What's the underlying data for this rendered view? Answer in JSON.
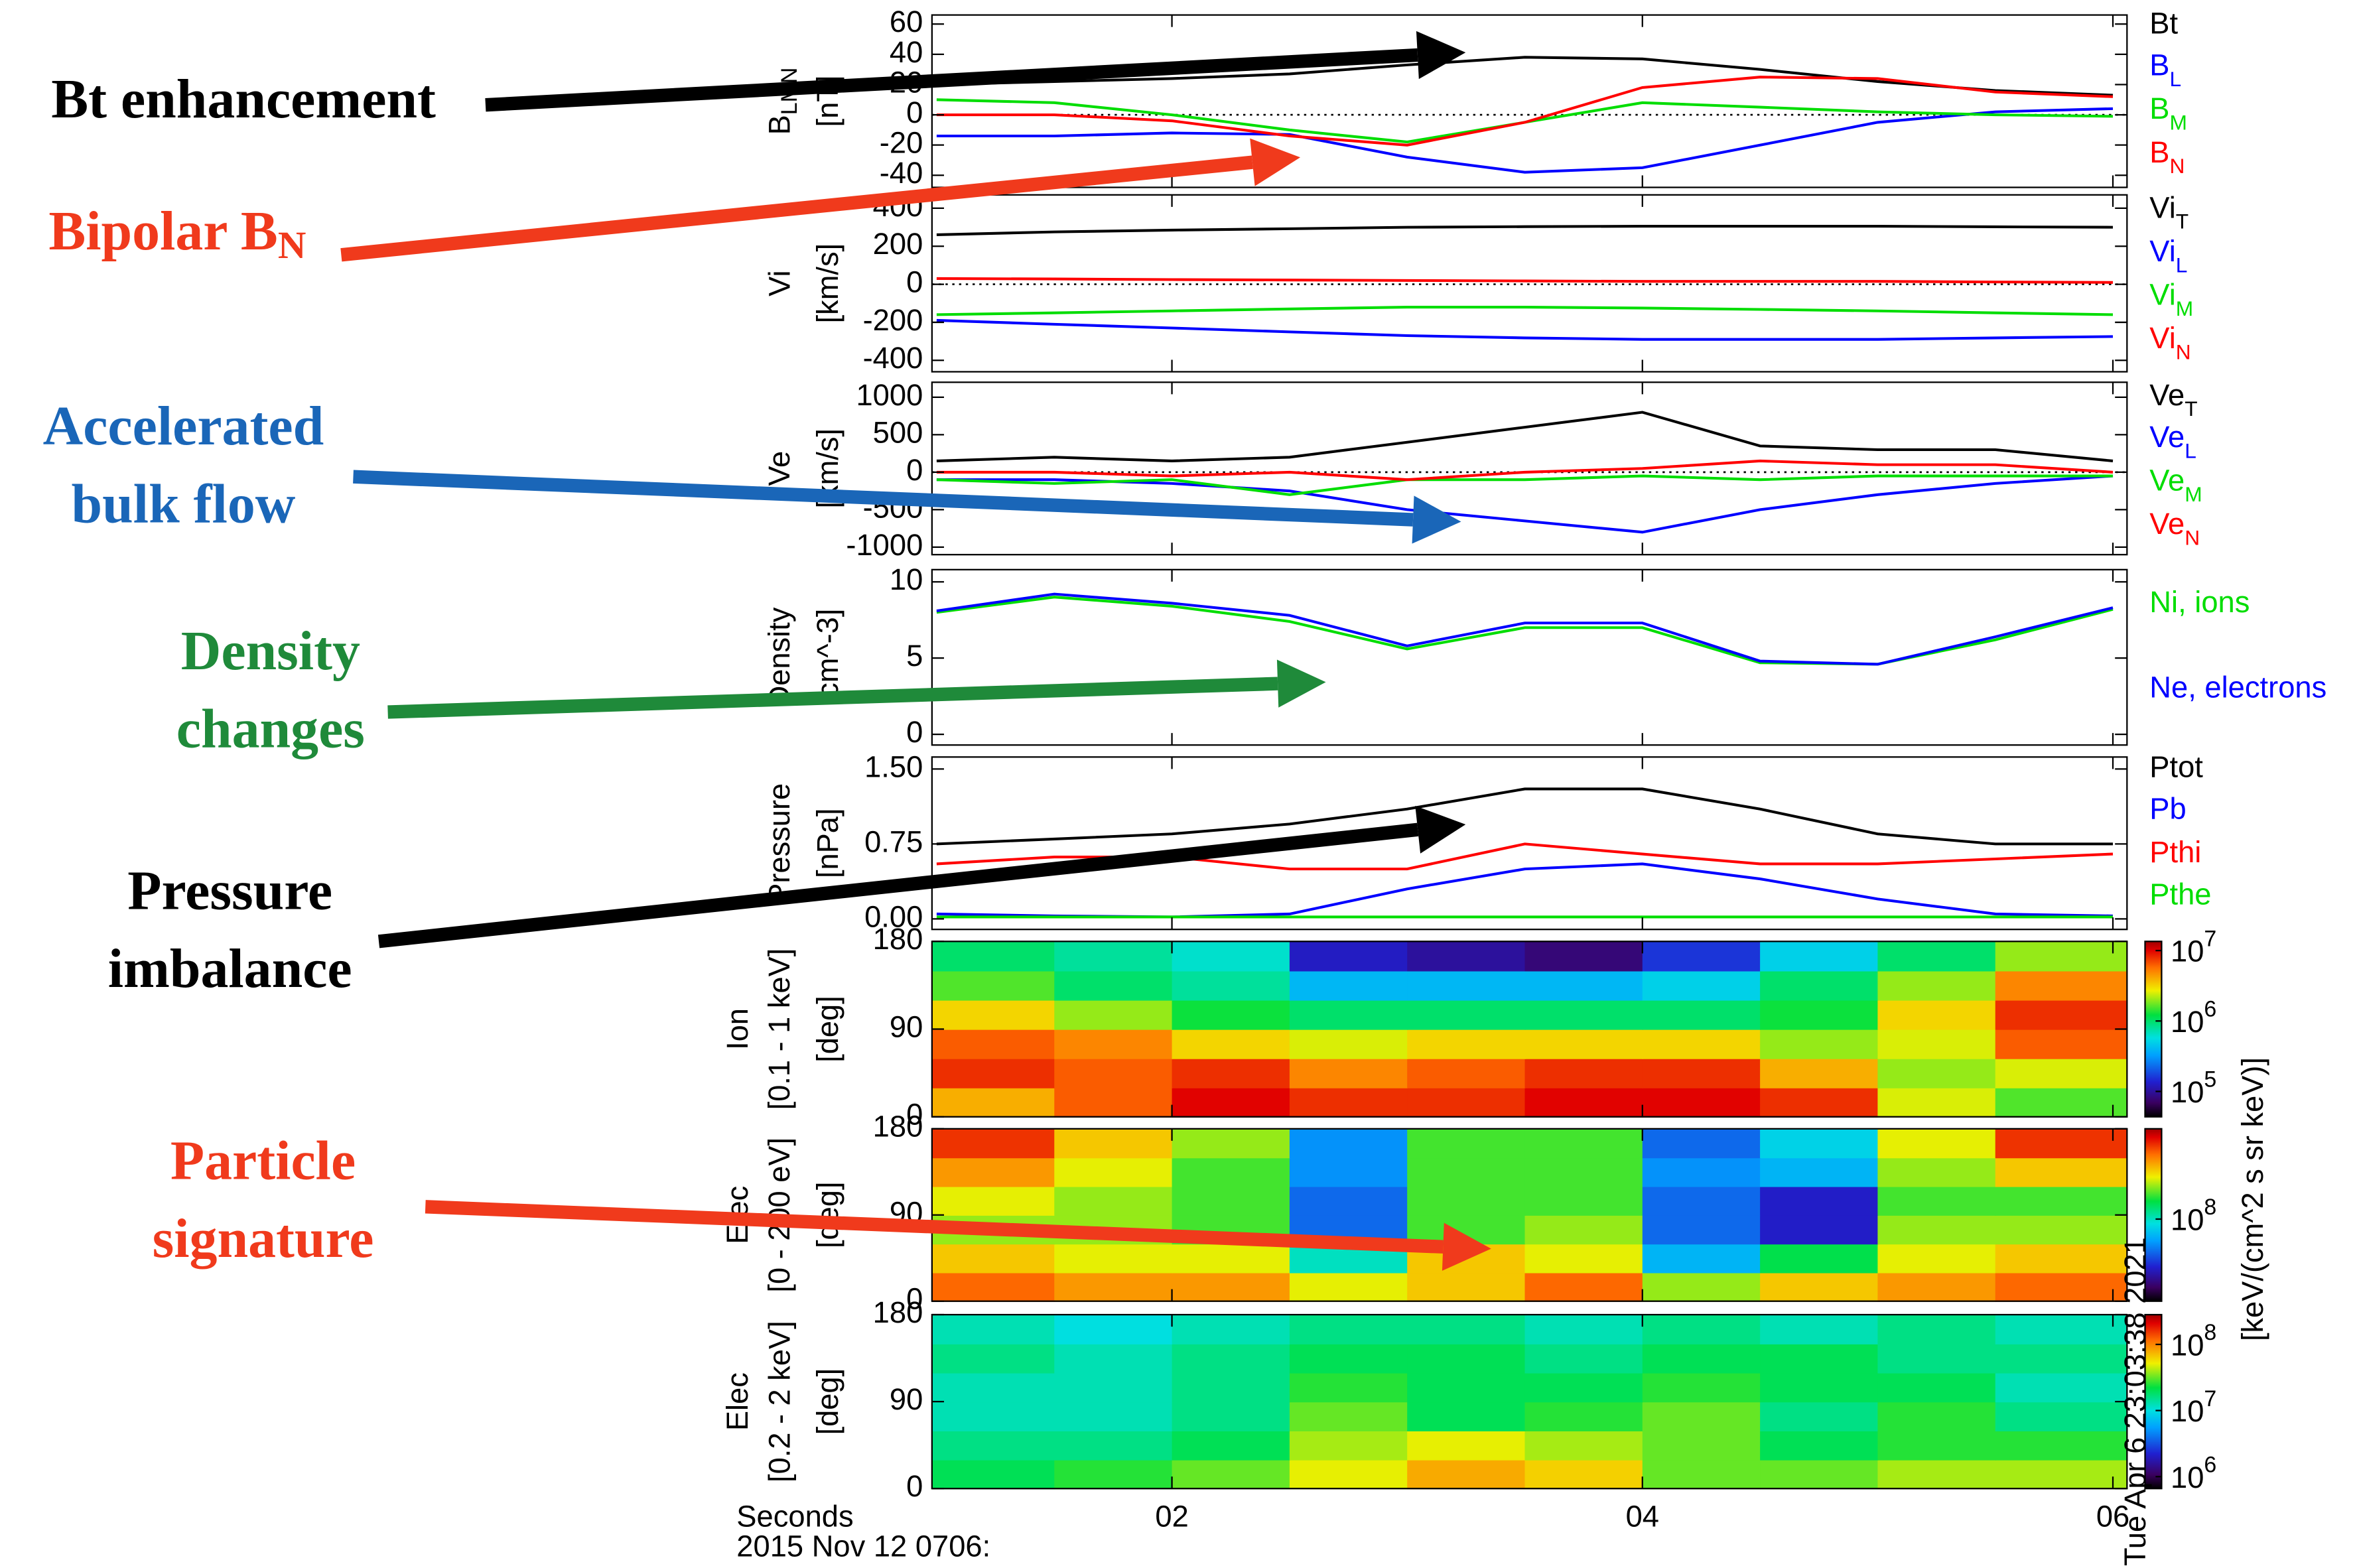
{
  "x_axis": {
    "xlim": [
      0.98,
      6.06
    ],
    "xticks": [
      {
        "value": 2,
        "label": "02"
      },
      {
        "value": 4,
        "label": "04"
      },
      {
        "value": 6,
        "label": "06"
      }
    ],
    "xlabel": "Seconds",
    "date": "2015 Nov 12 0706:"
  },
  "stamp": "Tue Apr  6 23:03:38 2021",
  "colorbar_label": "[keV/(cm^2 s sr keV)]",
  "annotations": [
    {
      "lines": [
        "Bt enhancement"
      ],
      "color": "#000000"
    },
    {
      "lines": [
        "Bipolar B"
      ],
      "sub": "N",
      "color": "#f03a1c"
    },
    {
      "lines": [
        "Accelerated",
        "bulk flow"
      ],
      "color": "#1a66b8"
    },
    {
      "lines": [
        "Density",
        "changes"
      ],
      "color": "#1f8a3a"
    },
    {
      "lines": [
        "Pressure",
        "imbalance"
      ],
      "color": "#000000"
    },
    {
      "lines": [
        "Particle",
        "signature"
      ],
      "color": "#f03a1c"
    }
  ],
  "chart_data": [
    {
      "type": "line",
      "ylabel": [
        "B",
        "LMN",
        "[nT]"
      ],
      "ylim": [
        -48,
        66
      ],
      "yticks": [
        60,
        40,
        20,
        0,
        -20,
        -40
      ],
      "reference_line": 0,
      "x": [
        1,
        1.5,
        2,
        2.5,
        3,
        3.5,
        4,
        4.5,
        5,
        5.5,
        6
      ],
      "series": [
        {
          "name": "Bt",
          "color": "#000000",
          "values": [
            20,
            22,
            24,
            27,
            33,
            38,
            37,
            30,
            22,
            16,
            13
          ]
        },
        {
          "name": "B",
          "name_sub": "L",
          "color": "#0000ff",
          "values": [
            -14,
            -14,
            -12,
            -13,
            -28,
            -38,
            -35,
            -20,
            -5,
            2,
            4
          ]
        },
        {
          "name": "B",
          "name_sub": "M",
          "color": "#00dd00",
          "values": [
            10,
            8,
            0,
            -10,
            -18,
            -5,
            8,
            5,
            2,
            0,
            -1
          ]
        },
        {
          "name": "B",
          "name_sub": "N",
          "color": "#ff0000",
          "values": [
            0,
            0,
            -4,
            -14,
            -20,
            -5,
            18,
            25,
            24,
            15,
            12
          ]
        }
      ]
    },
    {
      "type": "line",
      "ylabel": [
        "Vi",
        "[km/s]"
      ],
      "ylim": [
        -460,
        470
      ],
      "yticks": [
        400,
        200,
        0,
        -200,
        -400
      ],
      "reference_line": 0,
      "x": [
        1,
        1.5,
        2,
        2.5,
        3,
        3.5,
        4,
        4.5,
        5,
        5.5,
        6
      ],
      "series": [
        {
          "name": "Vi",
          "name_sub": "T",
          "color": "#000000",
          "values": [
            260,
            275,
            285,
            292,
            300,
            303,
            305,
            305,
            305,
            302,
            300
          ]
        },
        {
          "name": "Vi",
          "name_sub": "L",
          "color": "#0000ff",
          "values": [
            -190,
            -210,
            -230,
            -250,
            -270,
            -282,
            -290,
            -290,
            -290,
            -282,
            -275
          ]
        },
        {
          "name": "Vi",
          "name_sub": "M",
          "color": "#00dd00",
          "values": [
            -160,
            -150,
            -140,
            -130,
            -120,
            -120,
            -125,
            -132,
            -140,
            -150,
            -160
          ]
        },
        {
          "name": "Vi",
          "name_sub": "N",
          "color": "#ff0000",
          "values": [
            30,
            28,
            25,
            22,
            20,
            18,
            15,
            15,
            15,
            12,
            10
          ]
        }
      ]
    },
    {
      "type": "line",
      "ylabel": [
        "Ve",
        "[km/s]"
      ],
      "ylim": [
        -1100,
        1200
      ],
      "yticks": [
        1000,
        500,
        0,
        -500,
        -1000
      ],
      "reference_line": 0,
      "x": [
        1,
        1.5,
        2,
        2.5,
        3,
        3.5,
        4,
        4.5,
        5,
        5.5,
        6
      ],
      "series": [
        {
          "name": "Ve",
          "name_sub": "T",
          "color": "#000000",
          "values": [
            150,
            200,
            150,
            200,
            400,
            600,
            800,
            350,
            300,
            300,
            150
          ]
        },
        {
          "name": "Ve",
          "name_sub": "L",
          "color": "#0000ff",
          "values": [
            -100,
            -100,
            -150,
            -250,
            -500,
            -650,
            -800,
            -500,
            -300,
            -150,
            -50
          ]
        },
        {
          "name": "Ve",
          "name_sub": "M",
          "color": "#00dd00",
          "values": [
            -100,
            -150,
            -100,
            -300,
            -100,
            -100,
            -50,
            -100,
            -50,
            -50,
            -50
          ]
        },
        {
          "name": "Ve",
          "name_sub": "N",
          "color": "#ff0000",
          "values": [
            0,
            0,
            -50,
            0,
            -100,
            0,
            50,
            150,
            100,
            100,
            0
          ]
        }
      ]
    },
    {
      "type": "line",
      "ylabel": [
        "Density",
        "[cm^-3]"
      ],
      "ylim": [
        -0.7,
        10.8
      ],
      "yticks": [
        10,
        5,
        0
      ],
      "x": [
        1,
        1.5,
        2,
        2.5,
        3,
        3.5,
        4,
        4.5,
        5,
        5.5,
        6
      ],
      "series": [
        {
          "name": "Ni, ions",
          "color": "#00dd00",
          "values": [
            8,
            9,
            8.4,
            7.4,
            5.6,
            7,
            7,
            4.7,
            4.6,
            6.2,
            8.2
          ]
        },
        {
          "name": "Ne, electrons",
          "color": "#0000ff",
          "values": [
            8.1,
            9.2,
            8.6,
            7.8,
            5.8,
            7.3,
            7.3,
            4.8,
            4.6,
            6.4,
            8.3
          ]
        }
      ]
    },
    {
      "type": "line",
      "ylabel": [
        "Pressure",
        "[nPa]"
      ],
      "ylim": [
        -0.105,
        1.62
      ],
      "yticks": [
        {
          "value": 1.5,
          "label": "1.50"
        },
        0.75,
        {
          "value": 0,
          "label": "0.00"
        }
      ],
      "x": [
        1,
        1.5,
        2,
        2.5,
        3,
        3.5,
        4,
        4.5,
        5,
        5.5,
        6
      ],
      "series": [
        {
          "name": "Ptot",
          "color": "#000000",
          "values": [
            0.75,
            0.8,
            0.85,
            0.95,
            1.1,
            1.3,
            1.3,
            1.1,
            0.85,
            0.75,
            0.75
          ]
        },
        {
          "name": "Pb",
          "color": "#0000ff",
          "values": [
            0.05,
            0.03,
            0.02,
            0.05,
            0.3,
            0.5,
            0.55,
            0.4,
            0.2,
            0.05,
            0.03
          ]
        },
        {
          "name": "Pthi",
          "color": "#ff0000",
          "values": [
            0.55,
            0.62,
            0.62,
            0.5,
            0.5,
            0.75,
            0.65,
            0.55,
            0.55,
            0.6,
            0.65
          ]
        },
        {
          "name": "Pthe",
          "color": "#00dd00",
          "values": [
            0.02,
            0.02,
            0.02,
            0.02,
            0.02,
            0.02,
            0.02,
            0.02,
            0.02,
            0.02,
            0.02
          ]
        }
      ]
    },
    {
      "type": "heatmap",
      "ylabel": [
        "Ion",
        "[0.1 - 1 keV]",
        "[deg]"
      ],
      "ylim": [
        0,
        180
      ],
      "yticks": [
        180,
        90,
        0
      ],
      "x_edges": [
        0.98,
        1.5,
        2,
        2.5,
        3,
        3.5,
        4,
        4.5,
        5,
        5.5,
        6.06
      ],
      "y_edges": [
        0,
        30,
        60,
        90,
        120,
        150,
        180
      ],
      "z": [
        [
          6.6,
          6.8,
          7.0,
          6.9,
          6.9,
          7.0,
          7.0,
          6.9,
          6.4,
          6.2
        ],
        [
          6.9,
          6.8,
          6.9,
          6.7,
          6.8,
          6.9,
          6.9,
          6.6,
          6.3,
          6.4
        ],
        [
          6.8,
          6.7,
          6.5,
          6.4,
          6.5,
          6.5,
          6.5,
          6.3,
          6.4,
          6.8
        ],
        [
          6.5,
          6.3,
          6.1,
          6.0,
          6.0,
          6.0,
          6.0,
          6.1,
          6.5,
          6.9
        ],
        [
          6.2,
          6.0,
          5.9,
          5.6,
          5.6,
          5.6,
          5.7,
          6.0,
          6.3,
          6.7
        ],
        [
          6.0,
          5.9,
          5.8,
          5.1,
          5.0,
          4.9,
          5.2,
          5.7,
          6.0,
          6.3
        ]
      ],
      "colorbar": {
        "range": [
          4.64,
          7.13
        ],
        "ticks": [
          {
            "value": 7,
            "label": "10",
            "sup": "7"
          },
          {
            "value": 6,
            "label": "10",
            "sup": "6"
          },
          {
            "value": 5,
            "label": "10",
            "sup": "5"
          }
        ]
      }
    },
    {
      "type": "heatmap",
      "ylabel": [
        "Elec",
        "[0 - 200 eV]",
        "[deg]"
      ],
      "ylim": [
        0,
        180
      ],
      "yticks": [
        180,
        90,
        0
      ],
      "x_edges": [
        0.98,
        1.5,
        2,
        2.5,
        3,
        3.5,
        4,
        4.5,
        5,
        5.5,
        6.06
      ],
      "y_edges": [
        0,
        30,
        60,
        90,
        120,
        150,
        180
      ],
      "z": [
        [
          8.8,
          8.7,
          8.7,
          8.5,
          8.6,
          8.8,
          8.4,
          8.6,
          8.7,
          8.8
        ],
        [
          8.6,
          8.5,
          8.5,
          8.0,
          8.6,
          8.5,
          7.8,
          8.2,
          8.5,
          8.6
        ],
        [
          8.4,
          8.4,
          8.3,
          7.6,
          8.3,
          8.4,
          7.6,
          7.4,
          8.4,
          8.4
        ],
        [
          8.5,
          8.4,
          8.3,
          7.6,
          8.3,
          8.3,
          7.6,
          7.4,
          8.3,
          8.3
        ],
        [
          8.7,
          8.5,
          8.3,
          7.7,
          8.3,
          8.3,
          7.7,
          7.8,
          8.4,
          8.6
        ],
        [
          8.9,
          8.6,
          8.4,
          7.7,
          8.3,
          8.3,
          7.6,
          7.9,
          8.5,
          8.9
        ]
      ],
      "colorbar": {
        "range": [
          7.0,
          9.1
        ],
        "ticks": [
          {
            "value": 8,
            "label": "10",
            "sup": "8"
          }
        ]
      }
    },
    {
      "type": "heatmap",
      "ylabel": [
        "Elec",
        "[0.2 - 2 keV]",
        "[deg]"
      ],
      "ylim": [
        0,
        180
      ],
      "yticks": [
        180,
        90,
        0
      ],
      "x_edges": [
        0.98,
        1.5,
        2,
        2.5,
        3,
        3.5,
        4,
        4.5,
        5,
        5.5,
        6.06
      ],
      "y_edges": [
        0,
        30,
        60,
        90,
        120,
        150,
        180
      ],
      "z": [
        [
          7.3,
          7.4,
          7.5,
          7.7,
          7.9,
          7.8,
          7.5,
          7.5,
          7.6,
          7.6
        ],
        [
          7.2,
          7.2,
          7.3,
          7.6,
          7.7,
          7.6,
          7.5,
          7.3,
          7.4,
          7.4
        ],
        [
          7.1,
          7.1,
          7.2,
          7.5,
          7.3,
          7.4,
          7.5,
          7.2,
          7.4,
          7.2
        ],
        [
          7.1,
          7.1,
          7.2,
          7.4,
          7.3,
          7.3,
          7.4,
          7.3,
          7.3,
          7.1
        ],
        [
          7.2,
          7.1,
          7.2,
          7.3,
          7.3,
          7.2,
          7.3,
          7.3,
          7.2,
          7.2
        ],
        [
          7.1,
          7.0,
          7.1,
          7.2,
          7.2,
          7.1,
          7.2,
          7.1,
          7.2,
          7.1
        ]
      ],
      "colorbar": {
        "range": [
          5.82,
          8.45
        ],
        "ticks": [
          {
            "value": 8,
            "label": "10",
            "sup": "8"
          },
          {
            "value": 7,
            "label": "10",
            "sup": "7"
          },
          {
            "value": 6,
            "label": "10",
            "sup": "6"
          }
        ]
      }
    }
  ]
}
